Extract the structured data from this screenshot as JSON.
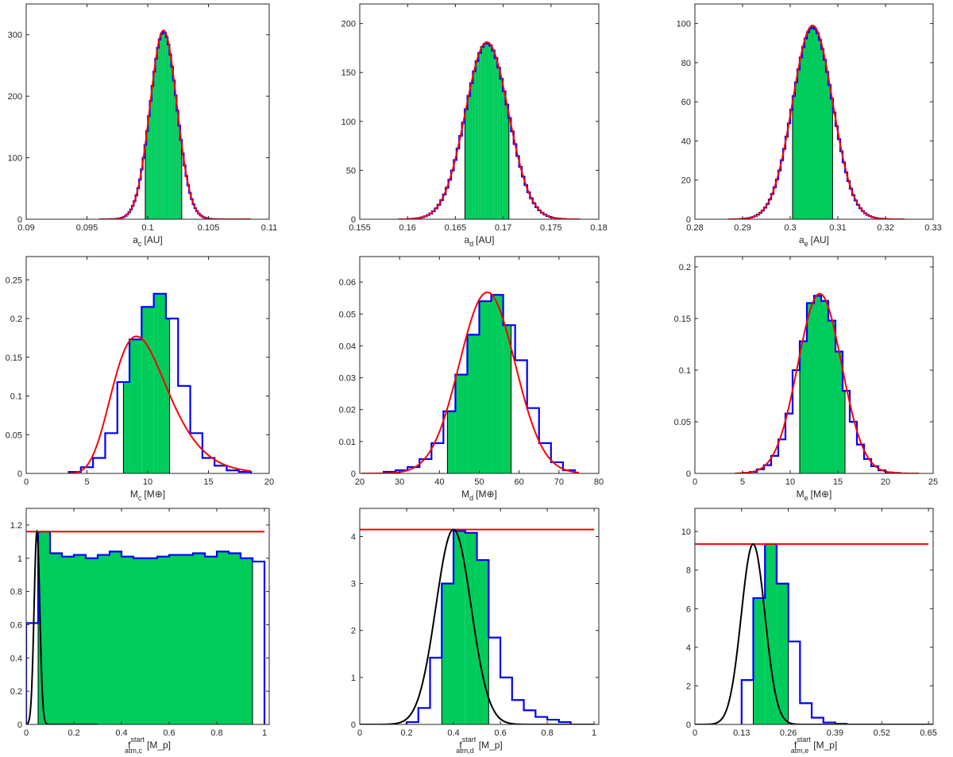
{
  "colors": {
    "histogram": "#0000ff",
    "fit": "#ff0000",
    "fit_black": "#000000",
    "shade": "#00cc5c",
    "axes": "#262626"
  },
  "chart_data": [
    {
      "id": "a_c",
      "type": "histogram",
      "xlabel": {
        "main": "a",
        "sub": "c",
        "sup": "",
        "unit": "[AU]"
      },
      "xlim": [
        0.09,
        0.11
      ],
      "ylim": [
        0,
        350
      ],
      "xticks": [
        0.09,
        0.095,
        0.1,
        0.105,
        0.11
      ],
      "xtick_labels": [
        "0.09",
        "0.095",
        "0.1",
        "0.105",
        "0.11"
      ],
      "yticks": [
        0,
        100,
        200,
        300
      ],
      "ytick_labels": [
        "0",
        "100",
        "200",
        "300"
      ],
      "hist": {
        "mode": "gauss",
        "mu": 0.1013,
        "sigma": 0.0011,
        "peak": 305,
        "start": 0.0962,
        "end": 0.1062,
        "nbins": 68
      },
      "shade": [
        0.0998,
        0.1028
      ],
      "fit": {
        "kind": "gauss",
        "mu": 0.1013,
        "sigma": 0.0011,
        "peak": 307,
        "x0": 0.096,
        "x1": 0.1085,
        "color": "fit"
      }
    },
    {
      "id": "a_d",
      "type": "histogram",
      "xlabel": {
        "main": "a",
        "sub": "d",
        "sup": "",
        "unit": "[AU]"
      },
      "xlim": [
        0.155,
        0.18
      ],
      "ylim": [
        0,
        220
      ],
      "xticks": [
        0.155,
        0.16,
        0.165,
        0.17,
        0.175,
        0.18
      ],
      "xtick_labels": [
        "0.155",
        "0.16",
        "0.165",
        "0.17",
        "0.175",
        "0.18"
      ],
      "yticks": [
        0,
        50,
        100,
        150,
        200
      ],
      "ytick_labels": [
        "0",
        "50",
        "100",
        "150",
        "200"
      ],
      "hist": {
        "mode": "gauss",
        "mu": 0.1683,
        "sigma": 0.00225,
        "peak": 180,
        "start": 0.16,
        "end": 0.1765,
        "nbins": 58
      },
      "shade": [
        0.166,
        0.1706
      ],
      "fit": {
        "kind": "gauss",
        "mu": 0.1683,
        "sigma": 0.00225,
        "peak": 181,
        "x0": 0.159,
        "x1": 0.178,
        "color": "fit"
      }
    },
    {
      "id": "a_e",
      "type": "histogram",
      "xlabel": {
        "main": "a",
        "sub": "e",
        "sup": "",
        "unit": "[AU]"
      },
      "xlim": [
        0.28,
        0.33
      ],
      "ylim": [
        0,
        110
      ],
      "xticks": [
        0.28,
        0.29,
        0.3,
        0.31,
        0.32,
        0.33
      ],
      "xtick_labels": [
        "0.28",
        "0.29",
        "0.3",
        "0.31",
        "0.32",
        "0.33"
      ],
      "yticks": [
        0,
        20,
        40,
        60,
        80,
        100
      ],
      "ytick_labels": [
        "0",
        "20",
        "40",
        "60",
        "80",
        "100"
      ],
      "hist": {
        "mode": "gauss",
        "mu": 0.3047,
        "sigma": 0.0042,
        "peak": 98,
        "start": 0.2895,
        "end": 0.3205,
        "nbins": 62
      },
      "shade": [
        0.3005,
        0.3089
      ],
      "fit": {
        "kind": "gauss",
        "mu": 0.3047,
        "sigma": 0.0042,
        "peak": 99,
        "x0": 0.287,
        "x1": 0.324,
        "color": "fit"
      }
    },
    {
      "id": "M_c",
      "type": "histogram",
      "xlabel": {
        "main": "M",
        "sub": "c",
        "sup": "",
        "unit": "[M⊕]"
      },
      "xlim": [
        0,
        20
      ],
      "ylim": [
        0,
        0.28
      ],
      "xticks": [
        0,
        5,
        10,
        15,
        20
      ],
      "xtick_labels": [
        "0",
        "5",
        "10",
        "15",
        "20"
      ],
      "yticks": [
        0,
        0.05,
        0.1,
        0.15,
        0.2,
        0.25
      ],
      "ytick_labels": [
        "0",
        "0.05",
        "0.1",
        "0.15",
        "0.2",
        "0.25"
      ],
      "hist": {
        "mode": "explicit",
        "edges": [
          3.5,
          4.5,
          5.5,
          6.5,
          7.5,
          8.5,
          9.5,
          10.5,
          11.5,
          12.5,
          13.5,
          14.5,
          15.5,
          16.5,
          17.5,
          18.5
        ],
        "values": [
          0.002,
          0.008,
          0.02,
          0.052,
          0.118,
          0.173,
          0.215,
          0.232,
          0.2,
          0.113,
          0.052,
          0.02,
          0.01,
          0.004,
          0.002
        ]
      },
      "shade": [
        8.0,
        11.8
      ],
      "fit": {
        "kind": "lognorm",
        "mu": 2.268,
        "sigma": 0.25,
        "peak": 0.177,
        "x0": 3.5,
        "x1": 18.5,
        "color": "fit"
      }
    },
    {
      "id": "M_d",
      "type": "histogram",
      "xlabel": {
        "main": "M",
        "sub": "d",
        "sup": "",
        "unit": "[M⊕]"
      },
      "xlim": [
        20,
        80
      ],
      "ylim": [
        0,
        0.068
      ],
      "xticks": [
        20,
        30,
        40,
        50,
        60,
        70,
        80
      ],
      "xtick_labels": [
        "20",
        "30",
        "40",
        "50",
        "60",
        "70",
        "80"
      ],
      "yticks": [
        0,
        0.01,
        0.02,
        0.03,
        0.04,
        0.05,
        0.06
      ],
      "ytick_labels": [
        "0",
        "0.01",
        "0.02",
        "0.03",
        "0.04",
        "0.05",
        "0.06"
      ],
      "hist": {
        "mode": "explicit",
        "edges": [
          26,
          29,
          32,
          35,
          38,
          41,
          44,
          47,
          50,
          53,
          56,
          59,
          62,
          65,
          68,
          71,
          74
        ],
        "values": [
          0.0005,
          0.001,
          0.002,
          0.0045,
          0.0095,
          0.0195,
          0.031,
          0.0435,
          0.054,
          0.056,
          0.0465,
          0.0355,
          0.0205,
          0.0095,
          0.0035,
          0.001
        ]
      },
      "shade": [
        42,
        58
      ],
      "fit": {
        "kind": "gauss",
        "mu": 52,
        "sigma": 7,
        "peak": 0.0568,
        "x0": 20.5,
        "x1": 75,
        "color": "fit"
      }
    },
    {
      "id": "M_e",
      "type": "histogram",
      "xlabel": {
        "main": "M",
        "sub": "e",
        "sup": "",
        "unit": "[M⊕]"
      },
      "xlim": [
        0,
        25
      ],
      "ylim": [
        0,
        0.21
      ],
      "xticks": [
        0,
        5,
        10,
        15,
        20,
        25
      ],
      "xtick_labels": [
        "0",
        "5",
        "10",
        "15",
        "20",
        "25"
      ],
      "yticks": [
        0,
        0.05,
        0.1,
        0.15,
        0.2
      ],
      "ytick_labels": [
        "0",
        "0.05",
        "0.1",
        "0.15",
        "0.2"
      ],
      "hist": {
        "mode": "explicit",
        "edges": [
          5.0,
          5.75,
          6.5,
          7.25,
          8.0,
          8.75,
          9.5,
          10.25,
          11.0,
          11.75,
          12.5,
          13.25,
          14.0,
          14.75,
          15.5,
          16.25,
          17.0,
          17.75,
          18.5,
          19.25,
          20.0,
          20.75,
          21.5
        ],
        "values": [
          0.0005,
          0.0015,
          0.004,
          0.008,
          0.017,
          0.033,
          0.058,
          0.1,
          0.128,
          0.165,
          0.172,
          0.167,
          0.148,
          0.118,
          0.08,
          0.05,
          0.028,
          0.014,
          0.007,
          0.003,
          0.001,
          0.0005
        ]
      },
      "shade": [
        11,
        15.75
      ],
      "fit": {
        "kind": "gauss",
        "mu": 13.1,
        "sigma": 2.3,
        "peak": 0.174,
        "x0": 4.2,
        "x1": 23.5,
        "color": "fit"
      }
    },
    {
      "id": "f_c",
      "type": "histogram",
      "xlabel": {
        "main": "f",
        "sub": "atm,c",
        "sup": "start",
        "unit": "[M_p]"
      },
      "xlim": [
        0,
        1.02
      ],
      "ylim": [
        0,
        1.3
      ],
      "xticks": [
        0,
        0.2,
        0.4,
        0.6,
        0.8,
        1.0
      ],
      "xtick_labels": [
        "0",
        "0.2",
        "0.4",
        "0.6",
        "0.8",
        "1"
      ],
      "yticks": [
        0,
        0.2,
        0.4,
        0.6,
        0.8,
        1.0,
        1.2
      ],
      "ytick_labels": [
        "0",
        "0.2",
        "0.4",
        "0.6",
        "0.8",
        "1",
        "1.2"
      ],
      "hist": {
        "mode": "explicit",
        "edges": [
          0,
          0.05,
          0.1,
          0.15,
          0.2,
          0.25,
          0.3,
          0.35,
          0.4,
          0.45,
          0.5,
          0.55,
          0.6,
          0.65,
          0.7,
          0.75,
          0.8,
          0.85,
          0.9,
          0.95,
          1.0
        ],
        "values": [
          0.61,
          1.16,
          1.03,
          1.01,
          1.02,
          1.0,
          1.02,
          1.04,
          1.01,
          1.0,
          1.0,
          1.01,
          1.02,
          1.02,
          1.03,
          1.01,
          1.04,
          1.03,
          1.0,
          0.98
        ]
      },
      "shade": [
        0.05,
        0.95
      ],
      "hline": {
        "y": 1.16,
        "x0": 0,
        "x1": 1.0,
        "color": "fit"
      },
      "fit": {
        "kind": "gauss",
        "mu": 0.045,
        "sigma": 0.012,
        "peak": 1.16,
        "x0": 0,
        "x1": 0.3,
        "color": "fit_black"
      }
    },
    {
      "id": "f_d",
      "type": "histogram",
      "xlabel": {
        "main": "f",
        "sub": "atm,d",
        "sup": "start",
        "unit": "[M_p]"
      },
      "xlim": [
        0,
        1.02
      ],
      "ylim": [
        0,
        4.6
      ],
      "xticks": [
        0,
        0.2,
        0.4,
        0.6,
        0.8,
        1.0
      ],
      "xtick_labels": [
        "0",
        "0.2",
        "0.4",
        "0.6",
        "0.8",
        "1"
      ],
      "yticks": [
        0,
        1,
        2,
        3,
        4
      ],
      "ytick_labels": [
        "0",
        "1",
        "2",
        "3",
        "4"
      ],
      "hist": {
        "mode": "explicit",
        "edges": [
          0.2,
          0.25,
          0.3,
          0.35,
          0.4,
          0.45,
          0.5,
          0.55,
          0.6,
          0.65,
          0.7,
          0.75,
          0.8,
          0.85,
          0.9
        ],
        "values": [
          0.05,
          0.35,
          1.42,
          3.0,
          4.12,
          4.08,
          3.5,
          1.85,
          1.0,
          0.52,
          0.3,
          0.16,
          0.1,
          0.05
        ]
      },
      "shade": [
        0.35,
        0.55
      ],
      "hline": {
        "y": 4.15,
        "x0": 0,
        "x1": 1.0,
        "color": "fit"
      },
      "fit": {
        "kind": "gauss",
        "mu": 0.4,
        "sigma": 0.075,
        "peak": 4.15,
        "x0": 0,
        "x1": 1.0,
        "color": "fit_black"
      }
    },
    {
      "id": "f_e",
      "type": "histogram",
      "xlabel": {
        "main": "f",
        "sub": "atm,e",
        "sup": "start",
        "unit": "[M_p]"
      },
      "xlim": [
        0,
        0.663
      ],
      "ylim": [
        0,
        11.2
      ],
      "xticks": [
        0,
        0.13,
        0.26,
        0.39,
        0.52,
        0.65
      ],
      "xtick_labels": [
        "0",
        "0.13",
        "0.26",
        "0.39",
        "0.52",
        "0.65"
      ],
      "yticks": [
        0,
        2,
        4,
        6,
        8,
        10
      ],
      "ytick_labels": [
        "0",
        "2",
        "4",
        "6",
        "8",
        "10"
      ],
      "hist": {
        "mode": "explicit",
        "edges": [
          0.13,
          0.1625,
          0.195,
          0.2275,
          0.26,
          0.2925,
          0.325,
          0.3575,
          0.39,
          0.4225
        ],
        "values": [
          2.3,
          6.55,
          9.35,
          7.3,
          4.3,
          1.1,
          0.35,
          0.1,
          0.03
        ]
      },
      "shade": [
        0.1625,
        0.26
      ],
      "hline": {
        "y": 9.35,
        "x0": 0,
        "x1": 0.65,
        "color": "fit"
      },
      "fit": {
        "kind": "gauss",
        "mu": 0.162,
        "sigma": 0.033,
        "peak": 9.35,
        "x0": 0,
        "x1": 0.663,
        "color": "fit_black"
      }
    }
  ]
}
